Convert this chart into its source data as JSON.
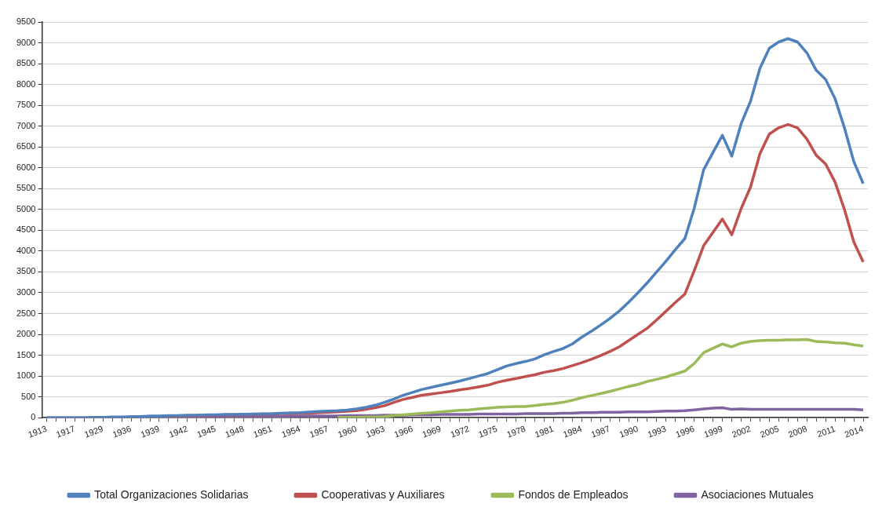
{
  "chart_data": {
    "type": "line",
    "categories": [
      "1913",
      null,
      null,
      "1917",
      null,
      null,
      "1929",
      null,
      null,
      "1936",
      null,
      null,
      "1939",
      null,
      null,
      "1942",
      null,
      null,
      "1945",
      null,
      null,
      "1948",
      null,
      null,
      "1951",
      null,
      null,
      "1954",
      null,
      null,
      "1957",
      null,
      null,
      "1960",
      null,
      null,
      "1963",
      null,
      null,
      "1966",
      null,
      null,
      "1969",
      null,
      null,
      "1972",
      null,
      null,
      "1975",
      null,
      null,
      "1978",
      null,
      null,
      "1981",
      null,
      null,
      "1984",
      null,
      null,
      "1987",
      null,
      null,
      "1990",
      null,
      null,
      "1993",
      null,
      null,
      "1996",
      null,
      null,
      "1999",
      null,
      null,
      "2002",
      null,
      null,
      "2005",
      null,
      null,
      "2008",
      null,
      null,
      "2011",
      null,
      null,
      "2014"
    ],
    "series": [
      {
        "name": "Total Organizaciones Solidarias",
        "color": "#4f81bd",
        "values": [
          0,
          0,
          0,
          0,
          0,
          10,
          10,
          20,
          20,
          30,
          30,
          40,
          40,
          50,
          50,
          60,
          60,
          70,
          70,
          80,
          80,
          85,
          90,
          95,
          100,
          110,
          115,
          120,
          135,
          150,
          160,
          170,
          185,
          210,
          250,
          300,
          370,
          450,
          540,
          610,
          680,
          730,
          780,
          830,
          880,
          940,
          1000,
          1060,
          1150,
          1240,
          1300,
          1350,
          1410,
          1510,
          1590,
          1660,
          1770,
          1930,
          2070,
          2220,
          2380,
          2560,
          2770,
          3000,
          3240,
          3500,
          3760,
          4040,
          4300,
          5030,
          5950,
          6370,
          6780,
          6280,
          7060,
          7600,
          8390,
          8870,
          9020,
          9100,
          9020,
          8760,
          8340,
          8120,
          7660,
          6960,
          6150,
          5620
        ]
      },
      {
        "name": "Cooperativas y Auxiliares",
        "color": "#c0504d",
        "values": [
          null,
          null,
          null,
          null,
          null,
          null,
          null,
          null,
          null,
          null,
          null,
          null,
          null,
          40,
          40,
          50,
          50,
          60,
          60,
          70,
          70,
          80,
          80,
          90,
          90,
          100,
          100,
          110,
          110,
          120,
          130,
          140,
          155,
          170,
          200,
          240,
          290,
          370,
          440,
          490,
          540,
          570,
          600,
          630,
          670,
          700,
          740,
          780,
          850,
          900,
          940,
          990,
          1030,
          1090,
          1130,
          1180,
          1250,
          1320,
          1400,
          1490,
          1590,
          1700,
          1850,
          2000,
          2150,
          2350,
          2560,
          2770,
          2970,
          3530,
          4130,
          4450,
          4770,
          4390,
          5020,
          5540,
          6340,
          6810,
          6960,
          7040,
          6960,
          6690,
          6300,
          6090,
          5660,
          5000,
          4220,
          3740
        ]
      },
      {
        "name": "Fondos de Empleados",
        "color": "#9bbb59",
        "values": [
          null,
          null,
          null,
          null,
          null,
          null,
          null,
          null,
          null,
          null,
          null,
          null,
          null,
          null,
          null,
          null,
          null,
          null,
          null,
          null,
          null,
          null,
          null,
          null,
          null,
          null,
          null,
          null,
          null,
          null,
          null,
          10,
          10,
          10,
          20,
          20,
          30,
          50,
          70,
          90,
          110,
          120,
          140,
          160,
          180,
          190,
          210,
          230,
          250,
          260,
          270,
          270,
          290,
          320,
          340,
          370,
          420,
          480,
          530,
          580,
          630,
          690,
          750,
          800,
          870,
          920,
          980,
          1050,
          1120,
          1300,
          1560,
          1670,
          1770,
          1700,
          1790,
          1830,
          1850,
          1860,
          1860,
          1870,
          1870,
          1880,
          1830,
          1820,
          1800,
          1790,
          1750,
          1720
        ]
      },
      {
        "name": "Asociaciones Mutuales",
        "color": "#8064a2",
        "values": [
          0,
          0,
          0,
          0,
          0,
          0,
          0,
          10,
          10,
          10,
          10,
          10,
          10,
          10,
          20,
          20,
          20,
          20,
          20,
          20,
          30,
          30,
          30,
          30,
          30,
          30,
          40,
          40,
          40,
          40,
          40,
          40,
          50,
          50,
          50,
          50,
          60,
          60,
          60,
          70,
          70,
          70,
          80,
          80,
          80,
          80,
          90,
          90,
          90,
          90,
          90,
          100,
          100,
          100,
          100,
          110,
          110,
          120,
          120,
          130,
          130,
          130,
          140,
          140,
          140,
          150,
          160,
          160,
          170,
          190,
          210,
          230,
          240,
          200,
          210,
          200,
          200,
          200,
          200,
          200,
          200,
          200,
          200,
          200,
          200,
          200,
          200,
          190
        ]
      }
    ],
    "ylim": [
      0,
      9500
    ],
    "yticks": [
      0,
      500,
      1000,
      1500,
      2000,
      2500,
      3000,
      3500,
      4000,
      4500,
      5000,
      5500,
      6000,
      6500,
      7000,
      7500,
      8000,
      8500,
      9000,
      9500
    ],
    "grid": "y",
    "legend": "bottom"
  }
}
